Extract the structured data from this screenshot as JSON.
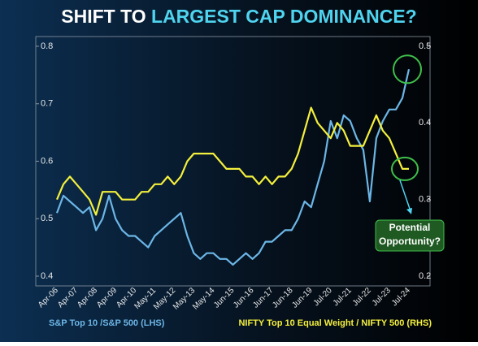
{
  "chart_data": {
    "type": "line",
    "title": [
      "SHIFT TO",
      "LARGEST CAP DOMINANCE?"
    ],
    "annotation": [
      "Potential",
      "Opportunity?"
    ],
    "categories": [
      "Apr-06",
      null,
      null,
      "Apr-07",
      null,
      null,
      "Apr-08",
      null,
      null,
      "Apr-09",
      null,
      null,
      "Apr-10",
      null,
      null,
      "May-11",
      null,
      null,
      "May-12",
      null,
      null,
      "May-13",
      null,
      null,
      "May-14",
      null,
      null,
      "Jun-15",
      null,
      null,
      "Jun-16",
      null,
      null,
      "Jun-17",
      null,
      null,
      "Jun-18",
      null,
      null,
      "Jun-19",
      null,
      null,
      "Jul-20",
      null,
      null,
      "Jul-21",
      null,
      null,
      "Jul-22",
      null,
      null,
      "Jul-23",
      null,
      null,
      "Jul-24"
    ],
    "series": [
      {
        "name": "S&P Top 10 /S&P 500 (LHS)",
        "color": "#6cb6e6",
        "axis": "y",
        "values": [
          0.51,
          0.54,
          0.53,
          0.52,
          0.51,
          0.52,
          0.48,
          0.5,
          0.54,
          0.5,
          0.48,
          0.47,
          0.47,
          0.46,
          0.45,
          0.47,
          0.48,
          0.49,
          0.5,
          0.51,
          0.47,
          0.44,
          0.43,
          0.44,
          0.44,
          0.43,
          0.43,
          0.42,
          0.43,
          0.44,
          0.43,
          0.44,
          0.46,
          0.46,
          0.47,
          0.48,
          0.48,
          0.5,
          0.53,
          0.52,
          0.56,
          0.6,
          0.67,
          0.64,
          0.68,
          0.67,
          0.64,
          0.62,
          0.53,
          0.64,
          0.67,
          0.69,
          0.69,
          0.71,
          0.76
        ]
      },
      {
        "name": "NIFTY Top 10 Equal Weight / NIFTY 500 (RHS)",
        "color": "#f4f03c",
        "axis": "y2",
        "values": [
          0.3,
          0.32,
          0.33,
          0.32,
          0.31,
          0.3,
          0.28,
          0.31,
          0.31,
          0.31,
          0.3,
          0.3,
          0.3,
          0.31,
          0.31,
          0.32,
          0.32,
          0.33,
          0.32,
          0.33,
          0.35,
          0.36,
          0.36,
          0.36,
          0.36,
          0.35,
          0.34,
          0.34,
          0.34,
          0.33,
          0.33,
          0.32,
          0.33,
          0.32,
          0.33,
          0.33,
          0.34,
          0.36,
          0.39,
          0.42,
          0.4,
          0.39,
          0.38,
          0.4,
          0.39,
          0.37,
          0.37,
          0.37,
          0.39,
          0.41,
          0.39,
          0.38,
          0.36,
          0.34,
          0.34
        ]
      }
    ],
    "ylim": [
      0.4,
      0.8
    ],
    "yticks": [
      0.4,
      0.5,
      0.6,
      0.7,
      0.8
    ],
    "y2lim": [
      0.2,
      0.5
    ],
    "y2ticks": [
      0.2,
      0.3,
      0.4,
      0.5
    ]
  }
}
